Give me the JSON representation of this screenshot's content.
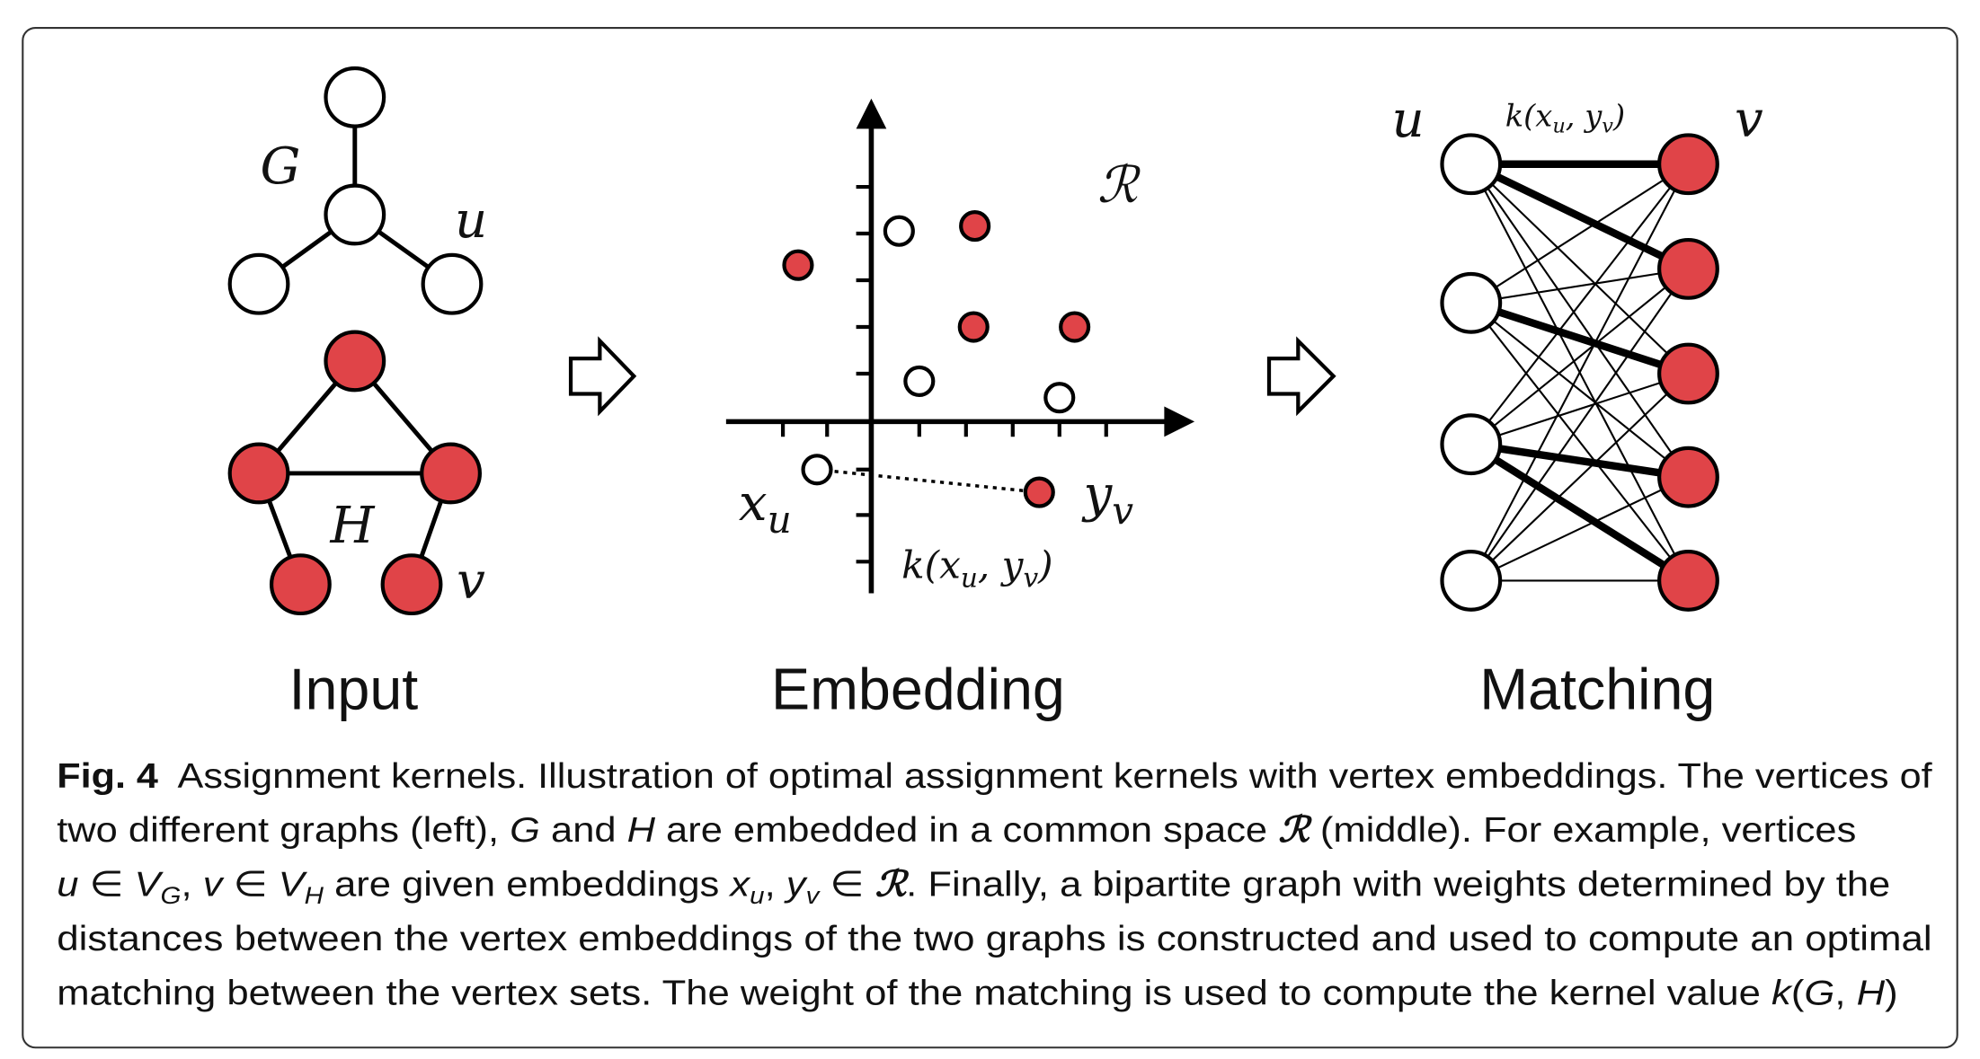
{
  "panels": [
    "Input",
    "Embedding",
    "Matching"
  ],
  "input": {
    "graph_g": "G",
    "vertex_u": "u",
    "graph_h": "H",
    "vertex_v": "v"
  },
  "embedding": {
    "space": "ℛ",
    "x_label": [
      "x",
      "u"
    ],
    "y_label": [
      "y",
      "v"
    ],
    "kernel": [
      "k(",
      "x",
      "u",
      ", ",
      "y",
      "v",
      ")"
    ]
  },
  "matching": {
    "left": "u",
    "right": "v",
    "kernel": [
      "k(",
      "x",
      "u",
      ", ",
      "y",
      "v",
      ")"
    ]
  },
  "caption": {
    "label": "Fig. 4",
    "lines": [
      [
        "  Assignment kernels. Illustration of optimal assignment kernels with vertex embeddings. The vertices of"
      ],
      [
        "two different graphs (left), ",
        "G",
        " and ",
        "H",
        " are embedded in a common space ",
        "ℛ",
        " (middle). For example, vertices"
      ],
      [
        "u",
        " ∈ ",
        "V",
        "G",
        ", ",
        "v",
        " ∈ ",
        "V",
        "H",
        " are given embeddings ",
        "x",
        "u",
        ", ",
        "y",
        "v",
        " ∈ ",
        "ℛ",
        ". Finally, a bipartite graph with weights determined by the"
      ],
      [
        "distances between the vertex embeddings of the two graphs is constructed and used to compute an optimal"
      ],
      [
        "matching between the vertex sets. The weight of the matching is used to compute the kernel value ",
        "k",
        "(",
        "G",
        ", ",
        "H",
        ")"
      ]
    ]
  }
}
